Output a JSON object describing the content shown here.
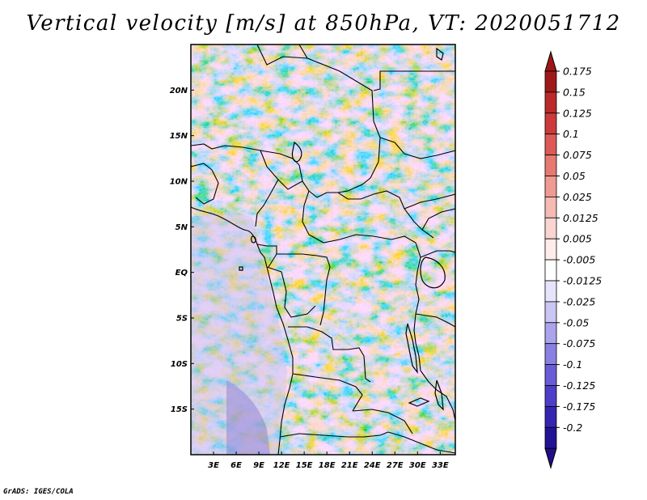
{
  "title": "Vertical velocity [m/s] at 850hPa, VT: 2020051712",
  "credit": "GrADS: IGES/COLA",
  "map": {
    "lon_range": [
      0,
      35
    ],
    "lat_range": [
      -20,
      25
    ],
    "lat_ticks": [
      {
        "value": 20,
        "label": "20N"
      },
      {
        "value": 15,
        "label": "15N"
      },
      {
        "value": 10,
        "label": "10N"
      },
      {
        "value": 5,
        "label": "5N"
      },
      {
        "value": 0,
        "label": "EQ"
      },
      {
        "value": -5,
        "label": "5S"
      },
      {
        "value": -10,
        "label": "10S"
      },
      {
        "value": -15,
        "label": "15S"
      }
    ],
    "lon_ticks": [
      {
        "value": 3,
        "label": "3E"
      },
      {
        "value": 6,
        "label": "6E"
      },
      {
        "value": 9,
        "label": "9E"
      },
      {
        "value": 12,
        "label": "12E"
      },
      {
        "value": 15,
        "label": "15E"
      },
      {
        "value": 18,
        "label": "18E"
      },
      {
        "value": 21,
        "label": "21E"
      },
      {
        "value": 24,
        "label": "24E"
      },
      {
        "value": 27,
        "label": "27E"
      },
      {
        "value": 30,
        "label": "30E"
      },
      {
        "value": 33,
        "label": "33E"
      }
    ]
  },
  "colorbar": {
    "labels": [
      "0.175",
      "0.15",
      "0.125",
      "0.1",
      "0.075",
      "0.05",
      "0.025",
      "0.0125",
      "0.005",
      "-0.005",
      "-0.0125",
      "-0.025",
      "-0.05",
      "-0.075",
      "-0.1",
      "-0.125",
      "-0.175",
      "-0.2"
    ],
    "colors": [
      "#9e1a1a",
      "#bb2a2a",
      "#cc3a3a",
      "#db5a55",
      "#e67a72",
      "#ef9a92",
      "#f5bab4",
      "#f9d5d1",
      "#fdecea",
      "#ffffff",
      "#e6e4fb",
      "#c9c5f4",
      "#aba4ec",
      "#8a80e2",
      "#6a5cd6",
      "#4e3ec7",
      "#3524b0",
      "#221396"
    ],
    "top_color": "#a01616",
    "bottom_color": "#200e8a"
  },
  "chart_data": {
    "type": "heatmap",
    "title": "Vertical velocity [m/s] at 850hPa, VT: 2020051712",
    "variable": "Vertical velocity",
    "units": "m/s",
    "level": "850hPa",
    "valid_time": "2020051712",
    "x_domain_lon": [
      0,
      35
    ],
    "y_domain_lat": [
      -20,
      25
    ],
    "contour_levels": [
      -0.2,
      -0.175,
      -0.125,
      -0.1,
      -0.075,
      -0.05,
      -0.025,
      -0.0125,
      -0.005,
      0.005,
      0.0125,
      0.025,
      0.05,
      0.075,
      0.1,
      0.125,
      0.15,
      0.175
    ]
  }
}
